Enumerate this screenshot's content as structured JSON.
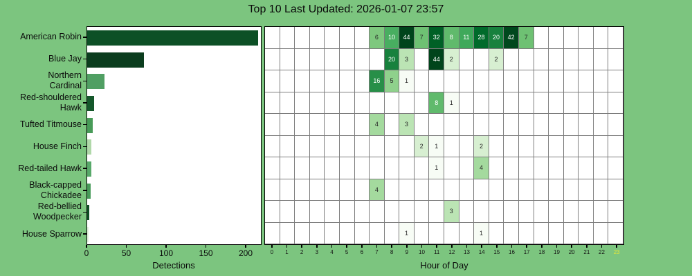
{
  "title": "Top 10 Last Updated: 2026-01-07 23:57",
  "colors": {
    "background": "#7cc57f",
    "plot_background": "#ffffff",
    "grid_line": "#7c7c7c",
    "border": "#000000",
    "highlight_hour_label": "#e3e63a",
    "cell_text_dark": "#262626",
    "cell_text_light": "#ffffff"
  },
  "chart_data": [
    {
      "type": "bar",
      "orientation": "horizontal",
      "title": "",
      "xlabel": "Detections",
      "ylabel": "",
      "categories": [
        "American Robin",
        "Blue Jay",
        "Northern\nCardinal",
        "Red-shouldered\nHawk",
        "Tufted Titmouse",
        "House Finch",
        "Red-tailed Hawk",
        "Black-capped\nChickadee",
        "Red-bellied\nWoodpecker",
        "House Sparrow"
      ],
      "values": [
        215,
        71,
        22,
        9,
        7,
        5,
        5,
        4,
        3,
        2
      ],
      "bar_colors": [
        "#0d5026",
        "#0b3d1e",
        "#509f63",
        "#15582b",
        "#489b58",
        "#b0d8a9",
        "#58a96a",
        "#479b59",
        "#0e4e24",
        "#e1f2dc"
      ],
      "xticks": [
        0,
        50,
        100,
        150,
        200
      ],
      "xlim": [
        0,
        220
      ],
      "grid": false
    },
    {
      "type": "heatmap",
      "title": "",
      "xlabel": "Hour of Day",
      "hours": [
        0,
        1,
        2,
        3,
        4,
        5,
        6,
        7,
        8,
        9,
        10,
        11,
        12,
        13,
        14,
        15,
        16,
        17,
        18,
        19,
        20,
        21,
        22,
        23
      ],
      "highlight_hour": 23,
      "colormap": "Greens",
      "norm": "log",
      "vmin": 1,
      "vmax": 44,
      "rows": [
        {
          "species": "American Robin",
          "cells": {
            "7": 6,
            "8": 10,
            "9": 44,
            "10": 7,
            "11": 32,
            "12": 8,
            "13": 11,
            "14": 28,
            "15": 20,
            "16": 42,
            "17": 7
          }
        },
        {
          "species": "Blue Jay",
          "cells": {
            "8": 20,
            "9": 3,
            "11": 44,
            "12": 2,
            "15": 2
          }
        },
        {
          "species": "Northern Cardinal",
          "cells": {
            "7": 16,
            "8": 5,
            "9": 1
          }
        },
        {
          "species": "Red-shouldered Hawk",
          "cells": {
            "11": 8,
            "12": 1
          }
        },
        {
          "species": "Tufted Titmouse",
          "cells": {
            "7": 4,
            "9": 3
          }
        },
        {
          "species": "House Finch",
          "cells": {
            "10": 2,
            "11": 1,
            "14": 2
          }
        },
        {
          "species": "Red-tailed Hawk",
          "cells": {
            "11": 1,
            "14": 4
          }
        },
        {
          "species": "Black-capped Chickadee",
          "cells": {
            "7": 4
          }
        },
        {
          "species": "Red-bellied Woodpecker",
          "cells": {
            "12": 3
          }
        },
        {
          "species": "House Sparrow",
          "cells": {
            "9": 1,
            "14": 1
          }
        }
      ]
    }
  ]
}
